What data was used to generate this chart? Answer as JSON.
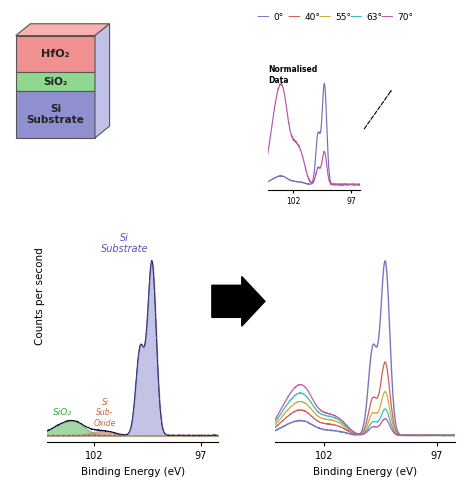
{
  "legend_angles": [
    "0°",
    "40°",
    "55°",
    "63°",
    "70°"
  ],
  "legend_colors": [
    "#7070bb",
    "#cc5555",
    "#ccaa33",
    "#33bbbb",
    "#bb55aa"
  ],
  "xlabel": "Binding Energy (eV)",
  "ylabel": "Counts per second",
  "normalised_data_label": "Normalised\nData",
  "si_substrate_label": "Si\nSubstrate",
  "sio2_label": "SiO₂",
  "sub_oxide_label": "Si\nSub-\nOxide",
  "box_layer_colors": [
    "#f09090",
    "#90d890",
    "#9090d0"
  ],
  "box_layer_labels": [
    "HfO₂",
    "SiO₂",
    "Si\nSubstrate"
  ],
  "box_top_color": "#f8b0b0",
  "box_side_color": "#c0c0e8"
}
